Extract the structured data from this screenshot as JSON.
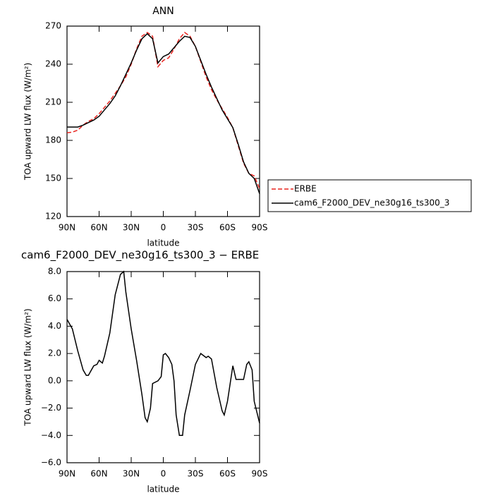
{
  "chart_data": [
    {
      "type": "line",
      "title": "ANN",
      "xlabel": "latitude",
      "ylabel": "TOA upward LW flux (W/m²)",
      "x": [
        90,
        85,
        80,
        75,
        70,
        65,
        60,
        55,
        50,
        45,
        40,
        35,
        30,
        25,
        20,
        15,
        10,
        5,
        0,
        -5,
        -10,
        -15,
        -20,
        -25,
        -30,
        -35,
        -40,
        -45,
        -50,
        -55,
        -60,
        -65,
        -70,
        -75,
        -80,
        -85,
        -90
      ],
      "series": [
        {
          "name": "ERBE",
          "color": "#e8231e",
          "dashed": true,
          "values": [
            186,
            186.5,
            188,
            192,
            195,
            197,
            201,
            206,
            211,
            217,
            223,
            230,
            240,
            252,
            262,
            265,
            262,
            238,
            243,
            245,
            252,
            260,
            265,
            262,
            254,
            242,
            230,
            220,
            212,
            205,
            198,
            190,
            176,
            162,
            154,
            152,
            142
          ]
        },
        {
          "name": "cam6_F2000_DEV_ne30g16_ts300_3",
          "color": "#000000",
          "dashed": false,
          "values": [
            190.5,
            190.5,
            190.5,
            192,
            194,
            196,
            199,
            204,
            209,
            215,
            223,
            232,
            241,
            251,
            260,
            264,
            260,
            241,
            246,
            248,
            253,
            258,
            262,
            261,
            254,
            243,
            232,
            222,
            213,
            204,
            197,
            190,
            177,
            163,
            154,
            150,
            138
          ]
        }
      ],
      "xlim": [
        90,
        -90
      ],
      "xticks": [
        {
          "value": 90,
          "label": "90N"
        },
        {
          "value": 60,
          "label": "60N"
        },
        {
          "value": 30,
          "label": "30N"
        },
        0,
        {
          "value": -30,
          "label": "30S"
        },
        {
          "value": -60,
          "label": "60S"
        },
        {
          "value": -90,
          "label": "90S"
        }
      ],
      "ylim": [
        120,
        270
      ],
      "yticks": [
        120,
        150,
        180,
        210,
        240,
        270
      ],
      "legend": "right"
    },
    {
      "type": "line",
      "title": "cam6_F2000_DEV_ne30g16_ts300_3 − ERBE",
      "xlabel": "latitude",
      "ylabel": "TOA upward LW flux (W/m²)",
      "color": "#000000",
      "x": [
        90,
        85,
        80,
        75,
        72,
        70,
        65,
        62,
        60,
        57,
        55,
        50,
        45,
        40,
        37,
        35,
        30,
        25,
        20,
        17,
        15,
        12,
        10,
        5,
        2,
        0,
        -2,
        -5,
        -8,
        -10,
        -12,
        -15,
        -18,
        -20,
        -25,
        -30,
        -35,
        -40,
        -42,
        -45,
        -50,
        -55,
        -57,
        -60,
        -65,
        -68,
        -70,
        -75,
        -78,
        -80,
        -83,
        -85,
        -90
      ],
      "values": [
        4.5,
        3.8,
        2.2,
        0.8,
        0.4,
        0.4,
        1.1,
        1.2,
        1.5,
        1.3,
        1.8,
        3.5,
        6.3,
        7.8,
        8.0,
        6.5,
        3.8,
        1.5,
        -1.0,
        -2.7,
        -3.0,
        -2.0,
        -0.2,
        0.0,
        0.3,
        1.9,
        2.0,
        1.7,
        1.2,
        0.0,
        -2.5,
        -4.0,
        -4.0,
        -2.5,
        -0.7,
        1.2,
        2.0,
        1.7,
        1.8,
        1.6,
        -0.5,
        -2.2,
        -2.5,
        -1.5,
        1.1,
        0.1,
        0.1,
        0.1,
        1.2,
        1.4,
        0.8,
        -1.5,
        -3.1
      ],
      "xlim": [
        90,
        -90
      ],
      "xticks": [
        {
          "value": 90,
          "label": "90N"
        },
        {
          "value": 60,
          "label": "60N"
        },
        {
          "value": 30,
          "label": "30N"
        },
        0,
        {
          "value": -30,
          "label": "30S"
        },
        {
          "value": -60,
          "label": "60S"
        },
        {
          "value": -90,
          "label": "90S"
        }
      ],
      "ylim": [
        -6,
        8
      ],
      "yticks": [
        {
          "value": -6,
          "label": "−6.0"
        },
        {
          "value": -4,
          "label": "−4.0"
        },
        {
          "value": -2,
          "label": "−2.0"
        },
        {
          "value": 0,
          "label": "0.0"
        },
        {
          "value": 2,
          "label": "2.0"
        },
        {
          "value": 4,
          "label": "4.0"
        },
        {
          "value": 6,
          "label": "6.0"
        },
        {
          "value": 8,
          "label": "8.0"
        }
      ]
    }
  ]
}
